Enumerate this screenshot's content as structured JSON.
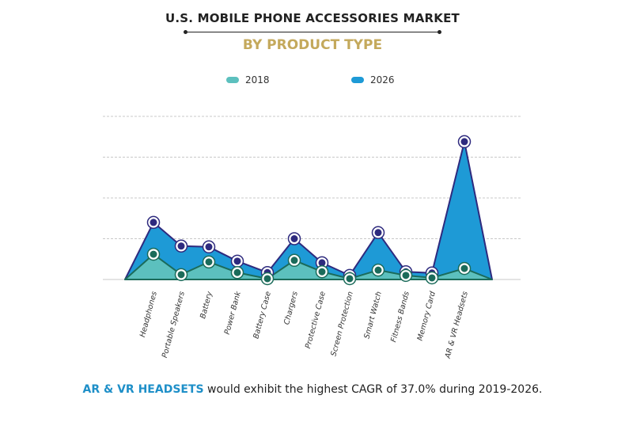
{
  "chart_data": {
    "type": "area",
    "title": "U.S. MOBILE PHONE ACCESSORIES MARKET",
    "subtitle": "BY PRODUCT TYPE",
    "xlabel": "",
    "ylabel": "",
    "ylim": [
      0,
      4
    ],
    "grid": true,
    "legend_position": "top",
    "categories": [
      "Headphones",
      "Portable Speakers",
      "Battery",
      "Power Bank",
      "Battery Case",
      "Chargers",
      "Protective Case",
      "Screen Protection",
      "Smart Watch",
      "Fitness Bands",
      "Memory Card",
      "AR & VR Headsets"
    ],
    "series": [
      {
        "name": "2018",
        "color": "#5cc0be",
        "marker_color": "#1b6b5a",
        "values": [
          0.62,
          0.12,
          0.43,
          0.17,
          0.02,
          0.47,
          0.19,
          0.02,
          0.23,
          0.1,
          0.04,
          0.27
        ]
      },
      {
        "name": "2026",
        "color": "#1e9ad6",
        "marker_color": "#2e2a7e",
        "values": [
          1.4,
          0.82,
          0.8,
          0.45,
          0.17,
          1.0,
          0.41,
          0.1,
          1.15,
          0.19,
          0.16,
          3.38
        ]
      }
    ]
  },
  "footer": {
    "highlight": "AR & VR HEADSETS",
    "text": " would exhibit the highest CAGR of 37.0% during 2019-2026."
  }
}
